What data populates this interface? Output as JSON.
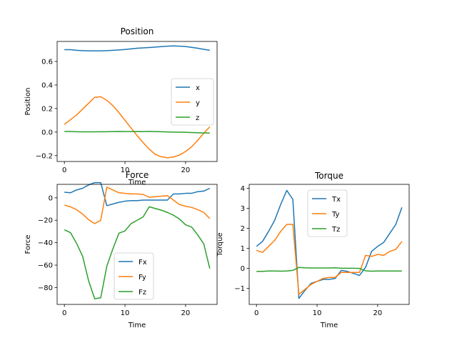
{
  "figure": {
    "background": "#ffffff",
    "colors": [
      "#1f77b4",
      "#ff7f0e",
      "#2ca02c"
    ]
  },
  "chart_data": [
    {
      "type": "line",
      "title": "Position",
      "xlabel": "Time",
      "ylabel": "Position",
      "xlim": [
        -1.2,
        25.2
      ],
      "ylim": [
        -0.25,
        0.77
      ],
      "xticks": [
        0,
        10,
        20
      ],
      "yticks": [
        -0.2,
        0.0,
        0.2,
        0.4,
        0.6
      ],
      "ytick_labels": [
        "−0.2",
        "0.0",
        "0.2",
        "0.4",
        "0.6"
      ],
      "legend_placement": "center-right",
      "grid": false,
      "x": [
        0,
        1,
        2,
        3,
        4,
        5,
        6,
        7,
        8,
        9,
        10,
        11,
        12,
        13,
        14,
        15,
        16,
        17,
        18,
        19,
        20,
        21,
        22,
        23,
        24
      ],
      "series": [
        {
          "name": "x",
          "color": "#1f77b4",
          "values": [
            0.7,
            0.7,
            0.695,
            0.692,
            0.69,
            0.69,
            0.69,
            0.692,
            0.695,
            0.698,
            0.702,
            0.707,
            0.712,
            0.715,
            0.718,
            0.722,
            0.726,
            0.73,
            0.732,
            0.73,
            0.727,
            0.72,
            0.712,
            0.703,
            0.695
          ]
        },
        {
          "name": "y",
          "color": "#ff7f0e",
          "values": [
            0.065,
            0.105,
            0.145,
            0.195,
            0.245,
            0.295,
            0.3,
            0.27,
            0.225,
            0.165,
            0.1,
            0.035,
            -0.03,
            -0.09,
            -0.145,
            -0.19,
            -0.21,
            -0.218,
            -0.212,
            -0.195,
            -0.165,
            -0.125,
            -0.07,
            -0.01,
            0.045
          ]
        },
        {
          "name": "z",
          "color": "#2ca02c",
          "values": [
            0.005,
            0.005,
            0.003,
            0.002,
            0.002,
            0.002,
            0.003,
            0.003,
            0.004,
            0.005,
            0.004,
            0.004,
            0.005,
            0.004,
            0.006,
            0.004,
            0.003,
            0.001,
            0.0,
            -0.001,
            -0.002,
            -0.004,
            -0.006,
            -0.007,
            -0.008
          ]
        }
      ]
    },
    {
      "type": "line",
      "title": "Force",
      "xlabel": "Time",
      "ylabel": "Force",
      "xlim": [
        -1.2,
        25.2
      ],
      "ylim": [
        -95,
        12
      ],
      "xticks": [
        0,
        10,
        20
      ],
      "yticks": [
        -80,
        -60,
        -40,
        -20,
        0
      ],
      "ytick_labels": [
        "−80",
        "−60",
        "−40",
        "−20",
        "0"
      ],
      "legend_placement": "lower-center",
      "grid": false,
      "x": [
        0,
        1,
        2,
        3,
        4,
        5,
        6,
        7,
        8,
        9,
        10,
        11,
        12,
        13,
        14,
        15,
        16,
        17,
        18,
        19,
        20,
        21,
        22,
        23,
        24
      ],
      "series": [
        {
          "name": "Fx",
          "color": "#1f77b4",
          "values": [
            5,
            4.5,
            7,
            8.5,
            11.5,
            13.5,
            13.5,
            -7,
            -5.5,
            -4,
            -3,
            -2.5,
            -2.5,
            -2,
            -2,
            -2,
            -2,
            -2,
            3.5,
            3.5,
            4,
            4,
            5.5,
            6,
            8.5
          ]
        },
        {
          "name": "Fy",
          "color": "#ff7f0e",
          "values": [
            -6.5,
            -8,
            -10.5,
            -14.5,
            -19.5,
            -23,
            -20,
            9.5,
            7,
            4.5,
            4,
            3.5,
            3.5,
            3,
            0.5,
            1,
            1.5,
            2,
            -2,
            -6,
            -7.5,
            -8.5,
            -10.5,
            -13,
            -18.5
          ]
        },
        {
          "name": "Fz",
          "color": "#2ca02c",
          "values": [
            -28.5,
            -31,
            -40.5,
            -52,
            -74,
            -90,
            -89,
            -61,
            -45.5,
            -31.5,
            -29.5,
            -23,
            -20,
            -17,
            -8,
            -9.5,
            -11,
            -13,
            -15.5,
            -19,
            -24,
            -26,
            -33,
            -41,
            -63
          ]
        }
      ]
    },
    {
      "type": "line",
      "title": "Torque",
      "xlabel": "Time",
      "ylabel": "Torque",
      "xlim": [
        -1.2,
        25.2
      ],
      "ylim": [
        -1.8,
        4.2
      ],
      "xticks": [
        0,
        10,
        20
      ],
      "yticks": [
        -1,
        0,
        1,
        2,
        3,
        4
      ],
      "ytick_labels": [
        "−1",
        "0",
        "1",
        "2",
        "3",
        "4"
      ],
      "legend_placement": "upper-center",
      "grid": false,
      "x": [
        0,
        1,
        2,
        3,
        4,
        5,
        6,
        7,
        8,
        9,
        10,
        11,
        12,
        13,
        14,
        15,
        16,
        17,
        18,
        19,
        20,
        21,
        22,
        23,
        24
      ],
      "series": [
        {
          "name": "Tx",
          "color": "#1f77b4",
          "values": [
            1.1,
            1.35,
            1.85,
            2.4,
            3.2,
            3.9,
            3.45,
            -1.5,
            -1.1,
            -0.75,
            -0.65,
            -0.55,
            -0.55,
            -0.5,
            -0.1,
            -0.15,
            -0.25,
            -0.35,
            0.05,
            0.85,
            1.1,
            1.3,
            1.75,
            2.2,
            3.05
          ]
        },
        {
          "name": "Ty",
          "color": "#ff7f0e",
          "values": [
            0.9,
            0.8,
            1.1,
            1.4,
            1.85,
            2.2,
            2.2,
            -1.3,
            -1.05,
            -0.8,
            -0.65,
            -0.5,
            -0.45,
            -0.45,
            -0.2,
            -0.2,
            -0.2,
            -0.2,
            0.65,
            0.6,
            0.7,
            0.65,
            0.85,
            0.95,
            1.35
          ]
        },
        {
          "name": "Tz",
          "color": "#2ca02c",
          "values": [
            -0.15,
            -0.15,
            -0.13,
            -0.13,
            -0.14,
            -0.13,
            -0.1,
            0.05,
            0.03,
            0.02,
            0.02,
            0.02,
            0.02,
            0.03,
            0.01,
            0.01,
            0.01,
            0.0,
            -0.12,
            -0.14,
            -0.13,
            -0.13,
            -0.13,
            -0.13,
            -0.13
          ]
        }
      ]
    }
  ]
}
